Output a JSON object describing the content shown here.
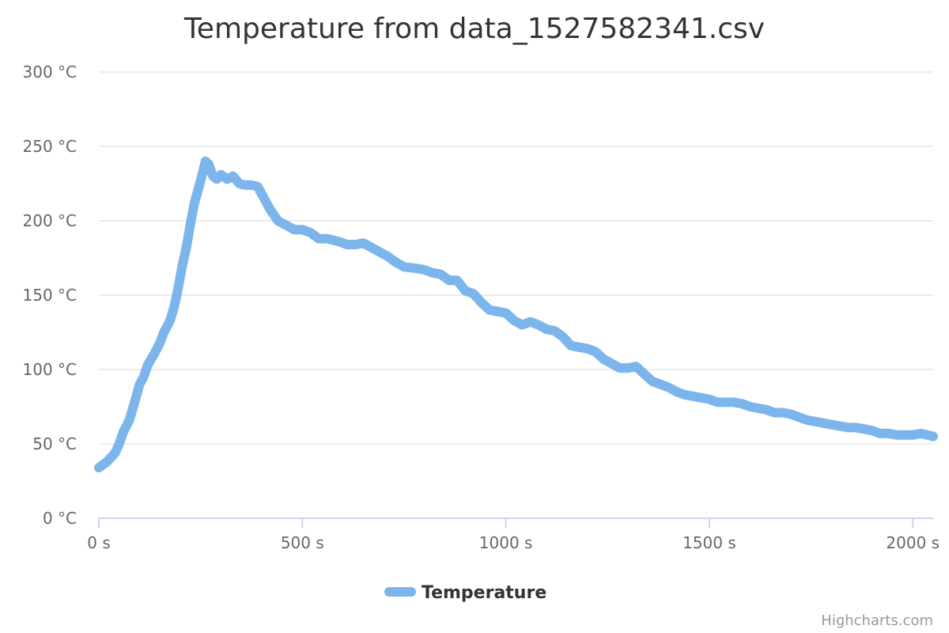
{
  "chart_data": {
    "type": "line",
    "title": "Temperature from data_1527582341.csv",
    "xlabel": "",
    "ylabel": "",
    "x_unit": "s",
    "y_unit": "°C",
    "xlim": [
      0,
      2050
    ],
    "ylim": [
      0,
      300
    ],
    "x_ticks": [
      0,
      500,
      1000,
      1500,
      2000
    ],
    "y_ticks": [
      0,
      50,
      100,
      150,
      200,
      250,
      300
    ],
    "x_tick_labels": [
      "0 s",
      "500 s",
      "1000 s",
      "1500 s",
      "2000 s"
    ],
    "y_tick_labels": [
      "0 °C",
      "50 °C",
      "100 °C",
      "150 °C",
      "200 °C",
      "250 °C",
      "300 °C"
    ],
    "grid": true,
    "legend": "bottom-center",
    "series": [
      {
        "name": "Temperature",
        "color": "#7cb5ec",
        "points": [
          [
            0,
            34
          ],
          [
            20,
            38
          ],
          [
            40,
            44
          ],
          [
            50,
            50
          ],
          [
            60,
            58
          ],
          [
            75,
            66
          ],
          [
            90,
            80
          ],
          [
            100,
            90
          ],
          [
            110,
            95
          ],
          [
            120,
            103
          ],
          [
            135,
            110
          ],
          [
            150,
            118
          ],
          [
            160,
            125
          ],
          [
            175,
            133
          ],
          [
            185,
            142
          ],
          [
            195,
            155
          ],
          [
            205,
            170
          ],
          [
            215,
            182
          ],
          [
            225,
            198
          ],
          [
            235,
            212
          ],
          [
            245,
            222
          ],
          [
            255,
            232
          ],
          [
            262,
            240
          ],
          [
            270,
            238
          ],
          [
            280,
            230
          ],
          [
            290,
            228
          ],
          [
            300,
            231
          ],
          [
            315,
            228
          ],
          [
            330,
            230
          ],
          [
            345,
            225
          ],
          [
            360,
            224
          ],
          [
            375,
            224
          ],
          [
            390,
            223
          ],
          [
            400,
            218
          ],
          [
            410,
            213
          ],
          [
            420,
            208
          ],
          [
            440,
            200
          ],
          [
            460,
            197
          ],
          [
            480,
            194
          ],
          [
            500,
            194
          ],
          [
            520,
            192
          ],
          [
            540,
            188
          ],
          [
            560,
            188
          ],
          [
            590,
            186
          ],
          [
            610,
            184
          ],
          [
            630,
            184
          ],
          [
            650,
            185
          ],
          [
            670,
            182
          ],
          [
            690,
            179
          ],
          [
            710,
            176
          ],
          [
            730,
            172
          ],
          [
            750,
            169
          ],
          [
            780,
            168
          ],
          [
            800,
            167
          ],
          [
            820,
            165
          ],
          [
            840,
            164
          ],
          [
            860,
            160
          ],
          [
            880,
            160
          ],
          [
            900,
            153
          ],
          [
            920,
            151
          ],
          [
            940,
            145
          ],
          [
            960,
            140
          ],
          [
            980,
            139
          ],
          [
            1000,
            138
          ],
          [
            1020,
            133
          ],
          [
            1040,
            130
          ],
          [
            1060,
            132
          ],
          [
            1080,
            130
          ],
          [
            1100,
            127
          ],
          [
            1120,
            126
          ],
          [
            1140,
            122
          ],
          [
            1160,
            116
          ],
          [
            1180,
            115
          ],
          [
            1200,
            114
          ],
          [
            1220,
            112
          ],
          [
            1240,
            107
          ],
          [
            1260,
            104
          ],
          [
            1280,
            101
          ],
          [
            1300,
            101
          ],
          [
            1320,
            102
          ],
          [
            1340,
            97
          ],
          [
            1360,
            92
          ],
          [
            1380,
            90
          ],
          [
            1400,
            88
          ],
          [
            1420,
            85
          ],
          [
            1440,
            83
          ],
          [
            1460,
            82
          ],
          [
            1480,
            81
          ],
          [
            1500,
            80
          ],
          [
            1520,
            78
          ],
          [
            1540,
            78
          ],
          [
            1560,
            78
          ],
          [
            1580,
            77
          ],
          [
            1600,
            75
          ],
          [
            1620,
            74
          ],
          [
            1640,
            73
          ],
          [
            1660,
            71
          ],
          [
            1680,
            71
          ],
          [
            1700,
            70
          ],
          [
            1720,
            68
          ],
          [
            1740,
            66
          ],
          [
            1760,
            65
          ],
          [
            1780,
            64
          ],
          [
            1800,
            63
          ],
          [
            1820,
            62
          ],
          [
            1840,
            61
          ],
          [
            1860,
            61
          ],
          [
            1880,
            60
          ],
          [
            1900,
            59
          ],
          [
            1920,
            57
          ],
          [
            1940,
            57
          ],
          [
            1960,
            56
          ],
          [
            1980,
            56
          ],
          [
            2000,
            56
          ],
          [
            2020,
            57
          ],
          [
            2050,
            55
          ]
        ]
      }
    ]
  },
  "credits": "Highcharts.com"
}
